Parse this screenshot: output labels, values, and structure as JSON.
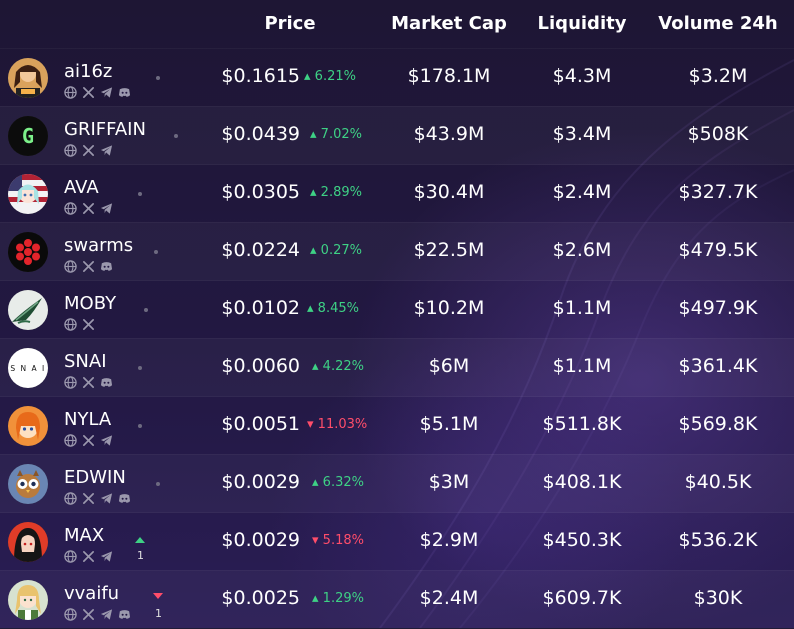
{
  "header": {
    "price": "Price",
    "market_cap": "Market Cap",
    "liquidity": "Liquidity",
    "volume": "Volume 24h"
  },
  "colors": {
    "up": "#3ed185",
    "down": "#ff4d6a",
    "background": "#1a1330"
  },
  "rows": [
    {
      "name": "ai16z",
      "price": "$0.1615",
      "change": "6.21%",
      "direction": "up",
      "market_cap": "$178.1M",
      "liquidity": "$4.3M",
      "volume": "$3.2M",
      "socials": [
        "globe-icon",
        "x-icon",
        "telegram-icon",
        "discord-icon"
      ],
      "rank_change": "",
      "rank_direction": ""
    },
    {
      "name": "GRIFFAIN",
      "price": "$0.0439",
      "change": "7.02%",
      "direction": "up",
      "market_cap": "$43.9M",
      "liquidity": "$3.4M",
      "volume": "$508K",
      "socials": [
        "globe-icon",
        "x-icon",
        "telegram-icon"
      ],
      "rank_change": "",
      "rank_direction": ""
    },
    {
      "name": "AVA",
      "price": "$0.0305",
      "change": "2.89%",
      "direction": "up",
      "market_cap": "$30.4M",
      "liquidity": "$2.4M",
      "volume": "$327.7K",
      "socials": [
        "globe-icon",
        "x-icon",
        "telegram-icon"
      ],
      "rank_change": "",
      "rank_direction": ""
    },
    {
      "name": "swarms",
      "price": "$0.0224",
      "change": "0.27%",
      "direction": "up",
      "market_cap": "$22.5M",
      "liquidity": "$2.6M",
      "volume": "$479.5K",
      "socials": [
        "globe-icon",
        "x-icon",
        "discord-icon"
      ],
      "rank_change": "",
      "rank_direction": ""
    },
    {
      "name": "MOBY",
      "price": "$0.0102",
      "change": "8.45%",
      "direction": "up",
      "market_cap": "$10.2M",
      "liquidity": "$1.1M",
      "volume": "$497.9K",
      "socials": [
        "globe-icon",
        "x-icon"
      ],
      "rank_change": "",
      "rank_direction": ""
    },
    {
      "name": "SNAI",
      "price": "$0.0060",
      "change": "4.22%",
      "direction": "up",
      "market_cap": "$6M",
      "liquidity": "$1.1M",
      "volume": "$361.4K",
      "socials": [
        "globe-icon",
        "x-icon",
        "discord-icon"
      ],
      "rank_change": "",
      "rank_direction": ""
    },
    {
      "name": "NYLA",
      "price": "$0.0051",
      "change": "11.03%",
      "direction": "down",
      "market_cap": "$5.1M",
      "liquidity": "$511.8K",
      "volume": "$569.8K",
      "socials": [
        "globe-icon",
        "x-icon",
        "telegram-icon"
      ],
      "rank_change": "",
      "rank_direction": ""
    },
    {
      "name": "EDWIN",
      "price": "$0.0029",
      "change": "6.32%",
      "direction": "up",
      "market_cap": "$3M",
      "liquidity": "$408.1K",
      "volume": "$40.5K",
      "socials": [
        "globe-icon",
        "x-icon",
        "telegram-icon",
        "discord-icon"
      ],
      "rank_change": "",
      "rank_direction": ""
    },
    {
      "name": "MAX",
      "price": "$0.0029",
      "change": "5.18%",
      "direction": "down",
      "market_cap": "$2.9M",
      "liquidity": "$450.3K",
      "volume": "$536.2K",
      "socials": [
        "globe-icon",
        "x-icon",
        "telegram-icon"
      ],
      "rank_change": "1",
      "rank_direction": "up"
    },
    {
      "name": "vvaifu",
      "price": "$0.0025",
      "change": "1.29%",
      "direction": "up",
      "market_cap": "$2.4M",
      "liquidity": "$609.7K",
      "volume": "$30K",
      "socials": [
        "globe-icon",
        "x-icon",
        "telegram-icon",
        "discord-icon"
      ],
      "rank_change": "1",
      "rank_direction": "down"
    }
  ]
}
